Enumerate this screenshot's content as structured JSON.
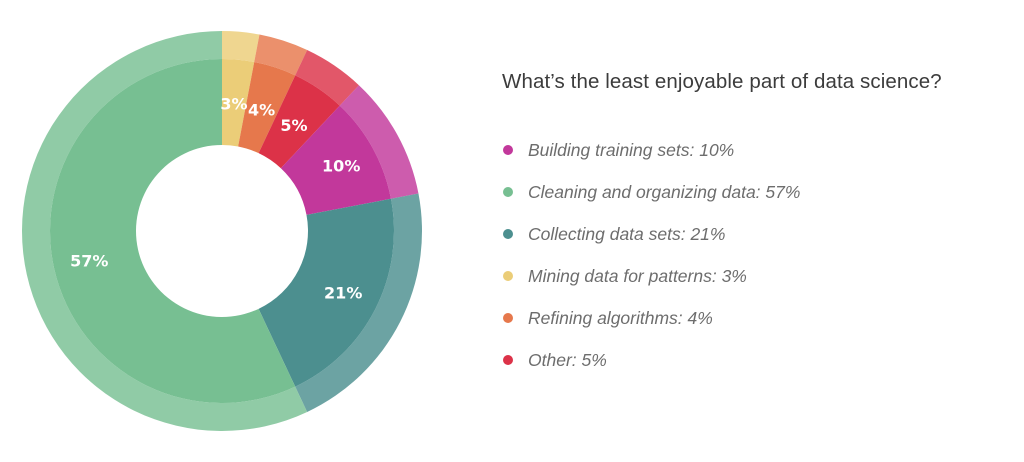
{
  "chart_data": {
    "type": "pie",
    "variant": "donut",
    "title": "What’s the least enjoyable part of data science?",
    "legend_position": "right",
    "slices": [
      {
        "legend": "Building training sets: 10%",
        "value": 10,
        "label": "10%",
        "color": "#c2389b"
      },
      {
        "legend": "Cleaning and organizing data: 57%",
        "value": 57,
        "label": "57%",
        "color": "#77bf92"
      },
      {
        "legend": "Collecting data sets: 21%",
        "value": 21,
        "label": "21%",
        "color": "#4c8f8f"
      },
      {
        "legend": "Mining data for patterns: 3%",
        "value": 3,
        "label": "3%",
        "color": "#ebcd78"
      },
      {
        "legend": "Refining algorithms: 4%",
        "value": 4,
        "label": "4%",
        "color": "#e6784c"
      },
      {
        "legend": "Other: 5%",
        "value": 5,
        "label": "5%",
        "color": "#dc3248"
      }
    ]
  },
  "chart_title": "What’s the least enjoyable part of data science?"
}
